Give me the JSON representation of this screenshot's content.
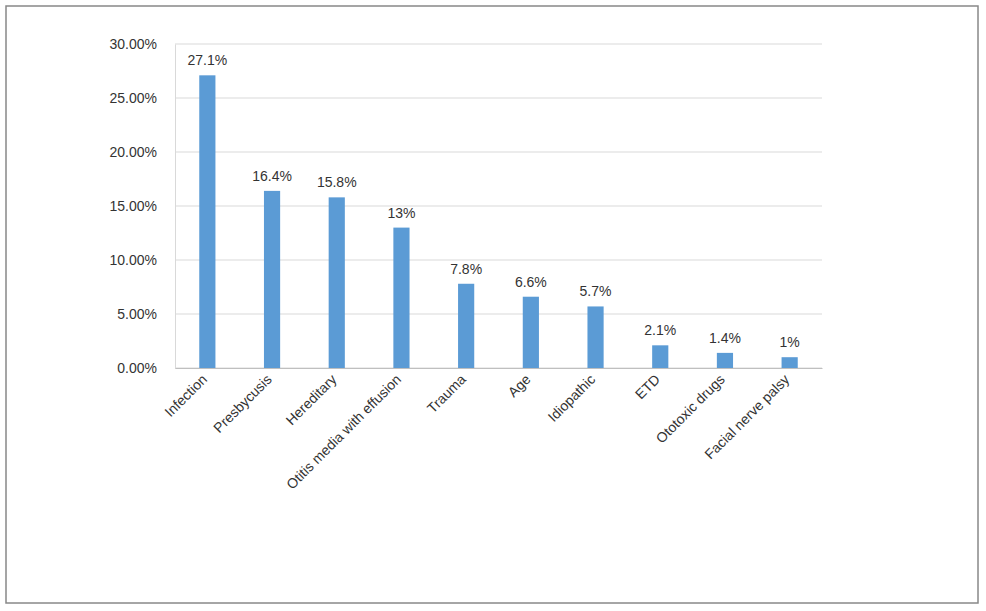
{
  "chart_data": {
    "type": "bar",
    "categories": [
      "Infection",
      "Presbycusis",
      "Hereditary",
      "Otitis media with effusion",
      "Trauma",
      "Age",
      "Idiopathic",
      "ETD",
      "Ototoxic drugs",
      "Facial nerve palsy"
    ],
    "values": [
      27.1,
      16.4,
      15.8,
      13,
      7.8,
      6.6,
      5.7,
      2.1,
      1.4,
      1
    ],
    "value_labels": [
      "27.1%",
      "16.4%",
      "15.8%",
      "13%",
      "7.8%",
      "6.6%",
      "5.7%",
      "2.1%",
      "1.4%",
      "1%"
    ],
    "color": "#5b9bd5",
    "ylim": [
      0,
      30
    ],
    "yticks": [
      {
        "value": 0,
        "label": "0.00%"
      },
      {
        "value": 5,
        "label": "5.00%"
      },
      {
        "value": 10,
        "label": "10.00%"
      },
      {
        "value": 15,
        "label": "15.00%"
      },
      {
        "value": 20,
        "label": "20.00%"
      },
      {
        "value": 25,
        "label": "25.00%"
      },
      {
        "value": 30,
        "label": "30.00%"
      }
    ],
    "grid": true,
    "data_labels": true
  }
}
